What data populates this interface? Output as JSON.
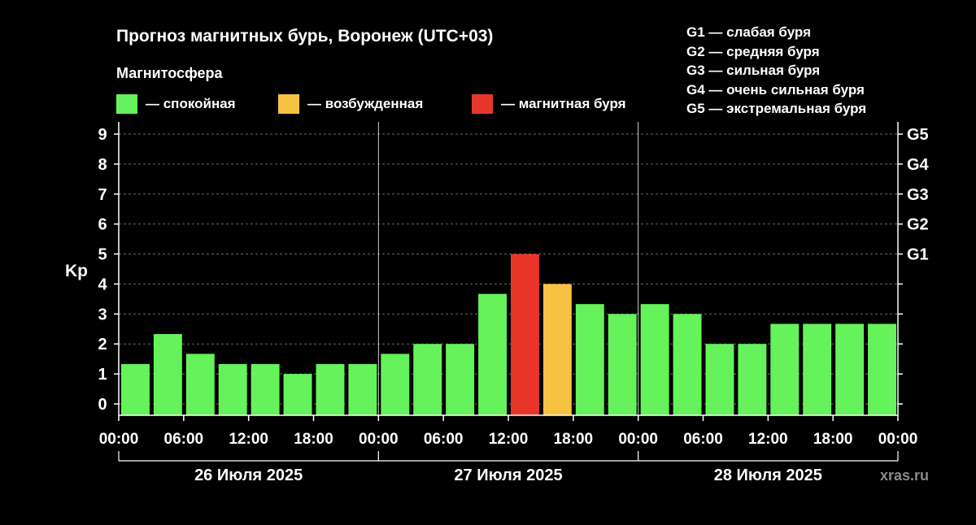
{
  "title": "Прогноз магнитных бурь, Воронеж (UTC+03)",
  "magnetosphere_label": "Магнитосфера",
  "legend": [
    {
      "label": "— спокойная",
      "color": "#66f25a"
    },
    {
      "label": "— возбужденная",
      "color": "#f5c242"
    },
    {
      "label": "— магнитная буря",
      "color": "#e8372a"
    }
  ],
  "storm_levels": [
    "G1 — слабая буря",
    "G2 — средняя буря",
    "G3 — сильная буря",
    "G4 — очень сильная буря",
    "G5 — экстремальная буря"
  ],
  "credit": "xras.ru",
  "chart_data": {
    "type": "bar",
    "ylabel": "Kp",
    "ylim": [
      0,
      9
    ],
    "y_ticks": [
      "0",
      "1",
      "2",
      "3",
      "4",
      "5",
      "6",
      "7",
      "8",
      "9"
    ],
    "right_ticks": [
      {
        "value": 5,
        "label": "G1"
      },
      {
        "value": 6,
        "label": "G2"
      },
      {
        "value": 7,
        "label": "G3"
      },
      {
        "value": 8,
        "label": "G4"
      },
      {
        "value": 9,
        "label": "G5"
      }
    ],
    "x_tick_labels": [
      "00:00",
      "06:00",
      "12:00",
      "18:00",
      "00:00",
      "06:00",
      "12:00",
      "18:00",
      "00:00",
      "06:00",
      "12:00",
      "18:00",
      "00:00"
    ],
    "days": [
      "26 Июля 2025",
      "27 Июля 2025",
      "28 Июля 2025"
    ],
    "bar_interval_hours": 3,
    "values": [
      1.33,
      2.33,
      1.67,
      1.33,
      1.33,
      1.0,
      1.33,
      1.33,
      1.67,
      2.0,
      2.0,
      3.67,
      5.0,
      4.0,
      3.33,
      3.0,
      3.33,
      3.0,
      2.0,
      2.0,
      2.67,
      2.67,
      2.67,
      2.67
    ],
    "bar_levels": [
      "quiet",
      "quiet",
      "quiet",
      "quiet",
      "quiet",
      "quiet",
      "quiet",
      "quiet",
      "quiet",
      "quiet",
      "quiet",
      "quiet",
      "storm",
      "active",
      "quiet",
      "quiet",
      "quiet",
      "quiet",
      "quiet",
      "quiet",
      "quiet",
      "quiet",
      "quiet",
      "quiet"
    ],
    "level_colors": {
      "quiet": "#66f25a",
      "active": "#f5c242",
      "storm": "#e8372a"
    },
    "grid": "dashed horizontal at each Kp level; vertical lines at day boundaries"
  }
}
